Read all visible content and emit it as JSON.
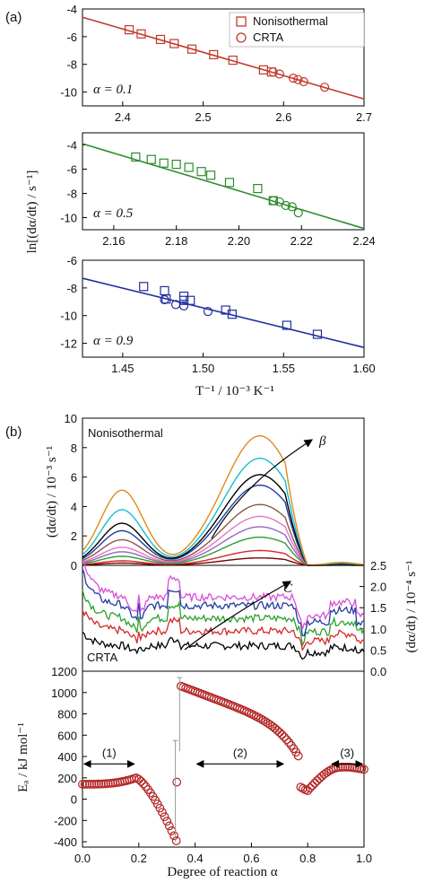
{
  "panel_labels": {
    "a": "(a)",
    "b": "(b)"
  },
  "colors": {
    "red": "#c0392b",
    "green": "#2e8b2e",
    "blue": "#1f2fa0",
    "ea": "#b22222"
  },
  "labels": {
    "a_ylabel": "ln[(dα/dt) / s⁻¹]",
    "a_xlabel": "T⁻¹ / 10⁻³ K⁻¹",
    "b1_ylabel": "(dα/dt) / 10⁻³ s⁻¹",
    "b2_ylabel": "(dα/dt) / 10⁻⁴ s⁻¹",
    "b3_ylabel": "Eₐ / kJ mol⁻¹",
    "b_xlabel": "Degree of reaction α",
    "nonisothermal": "Nonisothermal",
    "crta": "CRTA",
    "beta": "β",
    "c": "C",
    "region1": "(1)",
    "region2": "(2)",
    "region3": "(3)"
  },
  "chart_data": [
    {
      "type": "scatter",
      "panel": "a-1",
      "annotation": "α = 0.1",
      "xlim": [
        2.35,
        2.7
      ],
      "ylim": [
        -11,
        -4
      ],
      "xticks": [
        "2.4",
        "2.5",
        "2.6",
        "2.7"
      ],
      "xtick_vals": [
        2.4,
        2.5,
        2.6,
        2.7
      ],
      "yticks": [
        "-4",
        "-6",
        "-8",
        "-10"
      ],
      "ytick_vals": [
        -4,
        -6,
        -8,
        -10
      ],
      "legend": [
        {
          "name": "Nonisothermal",
          "marker": "square"
        },
        {
          "name": "CRTA",
          "marker": "circle"
        }
      ],
      "fit": [
        [
          2.35,
          -4.6
        ],
        [
          2.7,
          -10.5
        ]
      ],
      "series": [
        {
          "name": "Nonisothermal",
          "marker": "square",
          "points": [
            [
              2.408,
              -5.5
            ],
            [
              2.423,
              -5.8
            ],
            [
              2.447,
              -6.2
            ],
            [
              2.464,
              -6.5
            ],
            [
              2.486,
              -6.9
            ],
            [
              2.513,
              -7.3
            ],
            [
              2.537,
              -7.7
            ],
            [
              2.575,
              -8.4
            ],
            [
              2.585,
              -8.55
            ]
          ]
        },
        {
          "name": "CRTA",
          "marker": "circle",
          "points": [
            [
              2.587,
              -8.55
            ],
            [
              2.595,
              -8.7
            ],
            [
              2.612,
              -9.0
            ],
            [
              2.618,
              -9.1
            ],
            [
              2.625,
              -9.25
            ],
            [
              2.651,
              -9.65
            ]
          ]
        }
      ]
    },
    {
      "type": "scatter",
      "panel": "a-2",
      "annotation": "α = 0.5",
      "xlim": [
        2.15,
        2.24
      ],
      "ylim": [
        -11,
        -3
      ],
      "xticks": [
        "2.16",
        "2.18",
        "2.20",
        "2.22",
        "2.24"
      ],
      "xtick_vals": [
        2.16,
        2.18,
        2.2,
        2.22,
        2.24
      ],
      "yticks": [
        "-4",
        "-6",
        "-8",
        "-10"
      ],
      "ytick_vals": [
        -4,
        -6,
        -8,
        -10
      ],
      "fit": [
        [
          2.15,
          -3.9
        ],
        [
          2.24,
          -10.9
        ]
      ],
      "series": [
        {
          "name": "Nonisothermal",
          "marker": "square",
          "points": [
            [
              2.167,
              -5.0
            ],
            [
              2.172,
              -5.2
            ],
            [
              2.176,
              -5.5
            ],
            [
              2.18,
              -5.6
            ],
            [
              2.184,
              -5.85
            ],
            [
              2.188,
              -6.2
            ],
            [
              2.191,
              -6.5
            ],
            [
              2.197,
              -7.1
            ],
            [
              2.206,
              -7.6
            ],
            [
              2.211,
              -8.6
            ]
          ]
        },
        {
          "name": "CRTA",
          "marker": "circle",
          "points": [
            [
              2.211,
              -8.6
            ],
            [
              2.213,
              -8.7
            ],
            [
              2.215,
              -9.0
            ],
            [
              2.217,
              -9.1
            ],
            [
              2.219,
              -9.6
            ]
          ]
        }
      ]
    },
    {
      "type": "scatter",
      "panel": "a-3",
      "annotation": "α = 0.9",
      "xlim": [
        1.425,
        1.6
      ],
      "ylim": [
        -13,
        -6
      ],
      "xticks": [
        "1.45",
        "1.50",
        "1.55",
        "1.60"
      ],
      "xtick_vals": [
        1.45,
        1.5,
        1.55,
        1.6
      ],
      "yticks": [
        "-6",
        "-8",
        "-10",
        "-12"
      ],
      "ytick_vals": [
        -6,
        -8,
        -10,
        -12
      ],
      "fit": [
        [
          1.425,
          -7.3
        ],
        [
          1.6,
          -12.3
        ]
      ],
      "series": [
        {
          "name": "Nonisothermal",
          "marker": "square",
          "points": [
            [
              1.463,
              -7.9
            ],
            [
              1.476,
              -8.2
            ],
            [
              1.477,
              -8.8
            ],
            [
              1.488,
              -8.6
            ],
            [
              1.488,
              -8.9
            ],
            [
              1.492,
              -8.9
            ],
            [
              1.514,
              -9.6
            ],
            [
              1.518,
              -9.9
            ],
            [
              1.552,
              -10.7
            ],
            [
              1.571,
              -11.35
            ]
          ]
        },
        {
          "name": "CRTA",
          "marker": "circle",
          "points": [
            [
              1.476,
              -8.85
            ],
            [
              1.483,
              -9.2
            ],
            [
              1.488,
              -9.3
            ],
            [
              1.503,
              -9.7
            ]
          ]
        }
      ]
    },
    {
      "type": "line",
      "panel": "b-1",
      "annotation": "Nonisothermal",
      "xlim": [
        0,
        1
      ],
      "ylim": [
        0,
        10
      ],
      "yticks": [
        "0",
        "2",
        "4",
        "6",
        "8",
        "10"
      ],
      "ytick_vals": [
        0,
        2,
        4,
        6,
        8,
        10
      ],
      "arrow_label": "β",
      "series": [
        {
          "color": "#7a0000",
          "peaks": [
            0.15,
            0.5
          ]
        },
        {
          "color": "#d62728",
          "peaks": [
            0.3,
            1.0
          ]
        },
        {
          "color": "#2ca02c",
          "peaks": [
            0.6,
            1.9
          ]
        },
        {
          "color": "#9467bd",
          "peaks": [
            0.9,
            2.6
          ]
        },
        {
          "color": "#e377c2",
          "peaks": [
            1.2,
            3.3
          ]
        },
        {
          "color": "#8c564b",
          "peaks": [
            1.7,
            4.1
          ]
        },
        {
          "color": "#1f3ca0",
          "peaks": [
            2.3,
            5.4
          ]
        },
        {
          "color": "#000000",
          "peaks": [
            2.8,
            6.1
          ]
        },
        {
          "color": "#17becf",
          "peaks": [
            3.7,
            7.2
          ]
        },
        {
          "color": "#e08b1b",
          "peaks": [
            5.0,
            8.7
          ]
        }
      ]
    },
    {
      "type": "line",
      "panel": "b-2",
      "annotation": "CRTA",
      "xlim": [
        0,
        1
      ],
      "ylim": [
        0,
        2.5
      ],
      "yticks": [
        "0.0",
        "0.5",
        "1.0",
        "1.5",
        "2.0",
        "2.5"
      ],
      "ytick_vals": [
        0,
        0.5,
        1.0,
        1.5,
        2.0,
        2.5
      ],
      "arrow_label": "C",
      "series": [
        {
          "color": "#000000",
          "level": 0.6
        },
        {
          "color": "#d62728",
          "level": 0.95
        },
        {
          "color": "#2ca02c",
          "level": 1.25
        },
        {
          "color": "#1f3ca0",
          "level": 1.55
        },
        {
          "color": "#d94fd9",
          "level": 1.75
        }
      ]
    },
    {
      "type": "scatter",
      "panel": "b-3",
      "xlim": [
        0,
        1
      ],
      "ylim": [
        -450,
        1200
      ],
      "xticks": [
        "0.0",
        "0.2",
        "0.4",
        "0.6",
        "0.8",
        "1.0"
      ],
      "xtick_vals": [
        0,
        0.2,
        0.4,
        0.6,
        0.8,
        1.0
      ],
      "yticks": [
        "1200",
        "1000",
        "800",
        "600",
        "400",
        "200",
        "0",
        "-200",
        "-400"
      ],
      "ytick_vals": [
        1200,
        1000,
        800,
        600,
        400,
        200,
        0,
        -200,
        -400
      ],
      "regions": [
        {
          "label": "(1)",
          "from": 0.0,
          "to": 0.19
        },
        {
          "label": "(2)",
          "from": 0.4,
          "to": 0.72
        },
        {
          "label": "(3)",
          "from": 0.88,
          "to": 1.0
        }
      ],
      "errorbars": [
        [
          0.33,
          -400,
          550
        ],
        [
          0.345,
          450,
          1140
        ]
      ]
    }
  ]
}
